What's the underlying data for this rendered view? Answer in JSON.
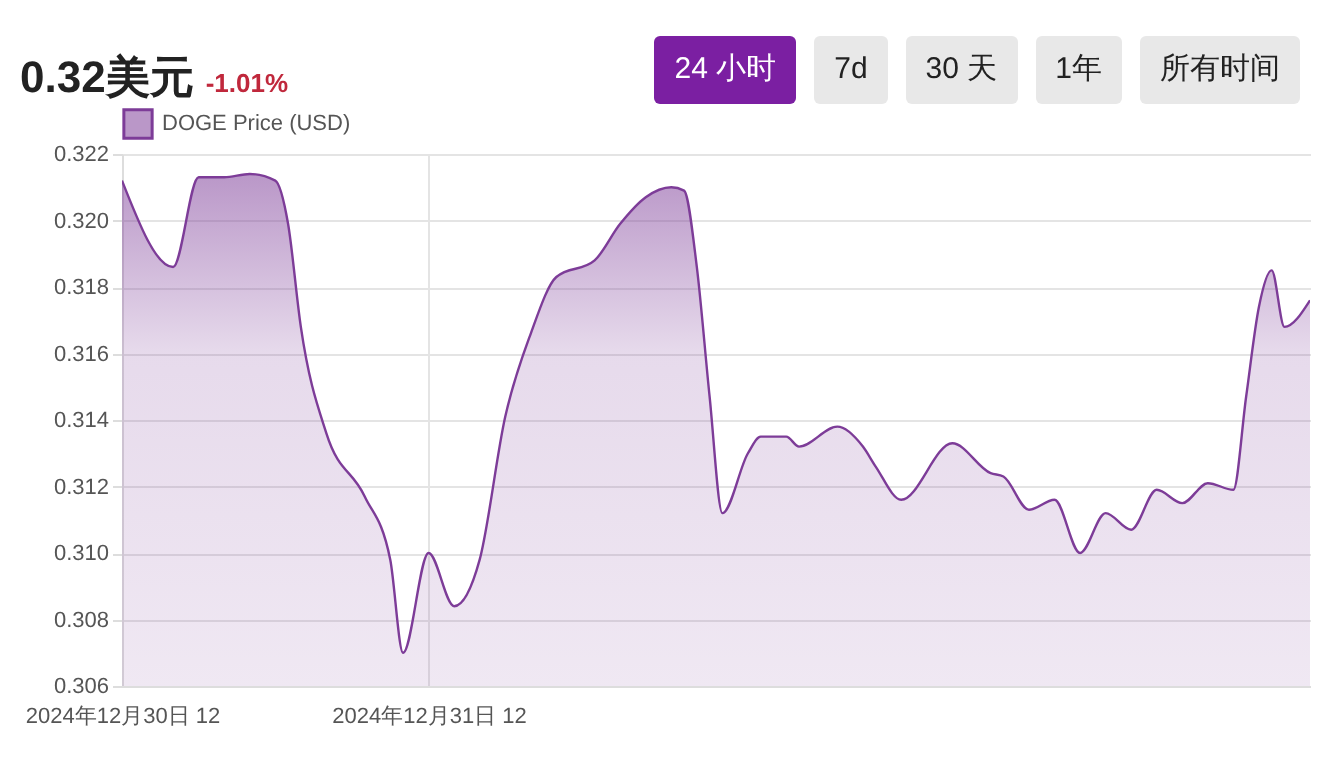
{
  "chart_data": {
    "type": "area",
    "title": "0.32美元",
    "subtitle": "-1.01%",
    "annotations": [
      "24 小时",
      "7d",
      "30 天",
      "1年",
      "所有时间"
    ],
    "x": [
      "2024-12-30T12:00",
      "2024-12-30T16:00",
      "2024-12-30T18:00",
      "2024-12-30T20:00",
      "2024-12-30T22:00",
      "2024-12-31T00:00",
      "2024-12-31T01:00",
      "2024-12-31T02:00",
      "2024-12-31T04:00",
      "2024-12-31T07:00",
      "2024-12-31T09:00",
      "2024-12-31T10:00",
      "2024-12-31T12:00",
      "2024-12-31T14:00",
      "2024-12-31T16:00",
      "2024-12-31T18:00",
      "2024-12-31T20:00",
      "2024-12-31T22:00",
      "2025-01-01T01:00",
      "2025-01-01T03:00",
      "2025-01-01T05:00",
      "2025-01-01T07:00",
      "2025-01-01T08:00",
      "2025-01-01T09:00",
      "2025-01-01T10:00",
      "2025-01-01T11:00",
      "2025-01-01T13:00",
      "2025-01-01T14:00",
      "2025-01-01T16:00",
      "2025-01-01T17:00",
      "2025-01-01T20:00",
      "2025-01-01T22:00",
      "2025-01-01T23:00",
      "2025-01-02T01:00",
      "2025-01-02T05:00",
      "2025-01-02T08:00",
      "2025-01-02T09:00",
      "2025-01-02T11:00",
      "2025-01-02T13:00",
      "2025-01-02T15:00",
      "2025-01-02T17:00",
      "2025-01-02T19:00",
      "2025-01-02T21:00",
      "2025-01-02T23:00",
      "2025-01-03T01:00",
      "2025-01-03T03:00",
      "2025-01-03T04:00",
      "2025-01-03T05:00",
      "2025-01-03T06:00",
      "2025-01-03T07:00",
      "2025-01-03T09:00"
    ],
    "series": [
      {
        "name": "DOGE Price (USD)",
        "color": "#7d3c98",
        "values": [
          0.3212,
          0.3186,
          0.3213,
          0.3213,
          0.3214,
          0.3212,
          0.3199,
          0.3168,
          0.3136,
          0.3117,
          0.3098,
          0.307,
          0.31,
          0.3084,
          0.3098,
          0.3141,
          0.3166,
          0.3183,
          0.3188,
          0.3199,
          0.3207,
          0.321,
          0.3209,
          0.3186,
          0.3147,
          0.3112,
          0.313,
          0.3135,
          0.3135,
          0.3132,
          0.3138,
          0.3132,
          0.3126,
          0.3116,
          0.3133,
          0.3124,
          0.3123,
          0.3113,
          0.3116,
          0.31,
          0.3112,
          0.3107,
          0.3119,
          0.3115,
          0.3121,
          0.3119,
          0.3147,
          0.3174,
          0.3185,
          0.3168,
          0.3176
        ]
      }
    ],
    "xlim": [
      "2024-12-30T12:00",
      "2025-01-03T09:00"
    ],
    "xticks": [
      {
        "value": "2024-12-30T12:00",
        "label": "2024年12月30日 12"
      },
      {
        "value": "2024-12-31T12:00",
        "label": "2024年12月31日 12"
      }
    ],
    "ylim": [
      0.306,
      0.322
    ],
    "yticks": [
      0.306,
      0.308,
      {
        "value": 0.31,
        "label": "0.310"
      },
      0.312,
      0.314,
      0.316,
      0.318,
      {
        "value": 0.32,
        "label": "0.320"
      },
      0.322
    ],
    "grid": true,
    "legend": "top",
    "marker": "none",
    "line_style": "solid"
  }
}
